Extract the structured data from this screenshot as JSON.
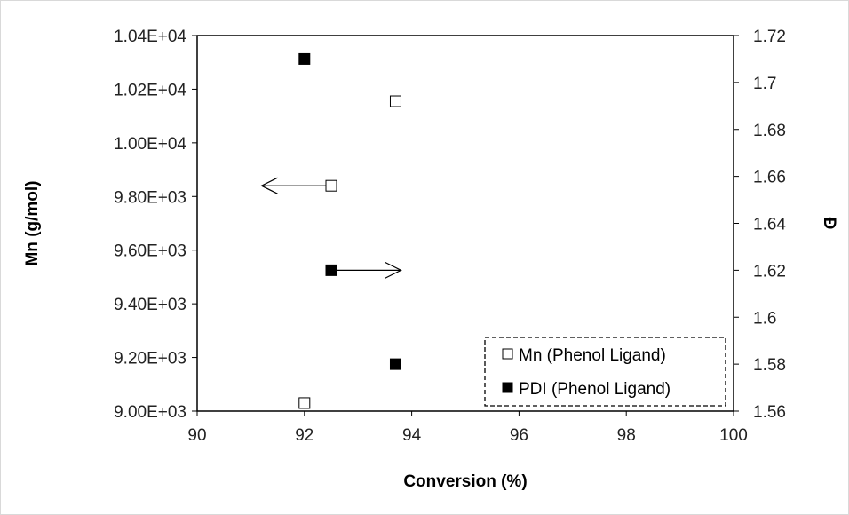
{
  "chart_data": {
    "type": "scatter",
    "xlabel": "Conversion (%)",
    "ylabel": "Mn (g/mol)",
    "y2label": "Đ",
    "xlim": [
      90,
      100
    ],
    "ylim": [
      9000,
      10400
    ],
    "y2lim": [
      1.56,
      1.72
    ],
    "x_ticks": [
      "90",
      "92",
      "94",
      "96",
      "98",
      "100"
    ],
    "y_ticks": [
      "9.00E+03",
      "9.20E+03",
      "9.40E+03",
      "9.60E+03",
      "9.80E+03",
      "1.00E+04",
      "1.02E+04",
      "1.04E+04"
    ],
    "y2_ticks": [
      "1.56",
      "1.58",
      "1.6",
      "1.62",
      "1.64",
      "1.66",
      "1.68",
      "1.7",
      "1.72"
    ],
    "grid": false,
    "legend_position": "bottom-right",
    "series": [
      {
        "name": "Mn (Phenol Ligand)",
        "axis": "left",
        "marker": "open-square",
        "points": [
          {
            "x": 92.0,
            "y": 9030
          },
          {
            "x": 92.5,
            "y": 9840
          },
          {
            "x": 93.7,
            "y": 10155
          }
        ]
      },
      {
        "name": "PDI (Phenol Ligand)",
        "axis": "right",
        "marker": "filled-square",
        "points": [
          {
            "x": 92.0,
            "y": 1.71
          },
          {
            "x": 92.5,
            "y": 1.62
          },
          {
            "x": 93.7,
            "y": 1.58
          }
        ]
      }
    ],
    "annotations": [
      {
        "type": "arrow",
        "direction": "left",
        "from": {
          "x": 92.5,
          "y": 9840
        },
        "to": {
          "x": 91.2,
          "y": 9840
        },
        "axis": "left"
      },
      {
        "type": "arrow",
        "direction": "right",
        "from": {
          "x": 92.5,
          "y": 1.62
        },
        "to": {
          "x": 93.8,
          "y": 1.62
        },
        "axis": "right"
      }
    ],
    "colors": {
      "axis": "#000000",
      "open_marker_fill": "#ffffff",
      "filled_marker": "#000000",
      "frame": "#d9d9d9"
    }
  }
}
